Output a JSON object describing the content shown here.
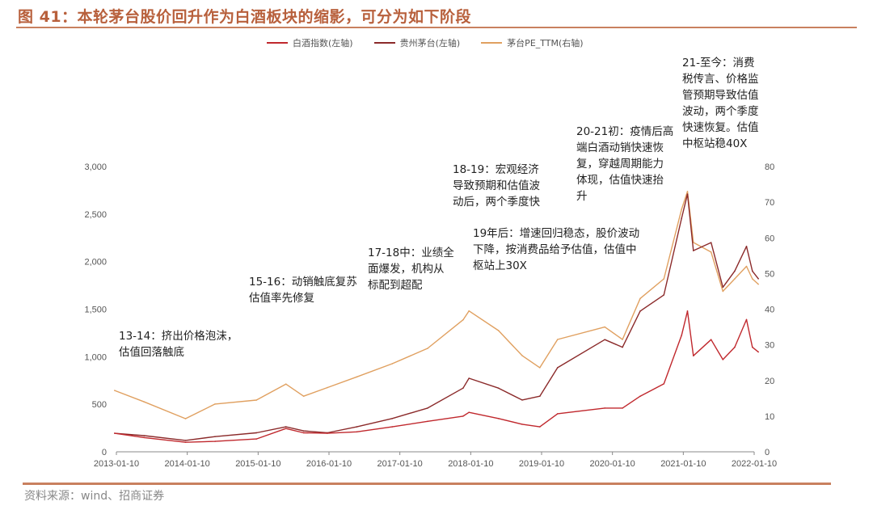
{
  "title": "图 41：本轮茅台股价回升作为白酒板块的缩影，可分为如下阶段",
  "source": "资料来源：wind、招商证券",
  "chart_data": {
    "type": "line",
    "title": "",
    "legend_position": "top",
    "grid": false,
    "x_ticks": [
      "2013-01-10",
      "2014-01-10",
      "2015-01-10",
      "2016-01-10",
      "2017-01-10",
      "2018-01-10",
      "2019-01-10",
      "2020-01-10",
      "2021-01-10",
      "2022-01-10"
    ],
    "y_left": {
      "range": [
        0,
        3000
      ],
      "ticks": [
        "0",
        "500",
        "1,000",
        "1,500",
        "2,000",
        "2,500",
        "3,000"
      ]
    },
    "y_right": {
      "range": [
        0,
        80
      ],
      "ticks": [
        "0",
        "10",
        "20",
        "30",
        "40",
        "50",
        "60",
        "70",
        "80"
      ]
    },
    "x": [
      "2013-01",
      "2013-06",
      "2014-01",
      "2014-06",
      "2015-01",
      "2015-06",
      "2015-09",
      "2016-01",
      "2016-06",
      "2016-12",
      "2017-06",
      "2017-12",
      "2018-01",
      "2018-06",
      "2018-10",
      "2019-01",
      "2019-04",
      "2019-12",
      "2020-03",
      "2020-06",
      "2020-10",
      "2021-01",
      "2021-02",
      "2021-03",
      "2021-06",
      "2021-08",
      "2021-10",
      "2021-12",
      "2022-01",
      "2022-02"
    ],
    "series": [
      {
        "name": "白酒指数(左轴)",
        "axis": "left",
        "color": "#c0282d",
        "values": [
          195,
          150,
          100,
          110,
          135,
          245,
          200,
          195,
          210,
          263,
          320,
          375,
          415,
          350,
          290,
          263,
          400,
          460,
          460,
          585,
          715,
          1225,
          1480,
          1010,
          1180,
          970,
          1100,
          1390,
          1100,
          1050
        ]
      },
      {
        "name": "贵州茅台(左轴)",
        "axis": "left",
        "color": "#8b2a2a",
        "values": [
          195,
          170,
          120,
          160,
          200,
          263,
          220,
          200,
          263,
          350,
          460,
          670,
          773,
          670,
          545,
          585,
          885,
          1180,
          1100,
          1480,
          1650,
          2455,
          2710,
          2115,
          2200,
          1730,
          1900,
          2160,
          1900,
          1820
        ]
      },
      {
        "name": "茅台PE_TTM(右轴)",
        "axis": "right",
        "color": "#e0a060",
        "values": [
          17.2,
          14,
          9.3,
          13.4,
          14.5,
          19,
          15.6,
          18,
          21,
          24.7,
          29,
          37,
          39.5,
          34,
          27,
          23.6,
          31.5,
          35,
          31.5,
          43,
          48.5,
          68,
          73,
          58.7,
          56,
          45,
          48.5,
          52,
          48.5,
          47
        ]
      }
    ]
  },
  "annotations": [
    {
      "lines": "13-14：挤出价格泡沫，\n估值回落触底"
    },
    {
      "lines": "15-16：动销触底复苏\n估值率先修复"
    },
    {
      "lines": "17-18中：业绩全\n面爆发，机构从\n标配到超配"
    },
    {
      "lines": "18-19：宏观经济\n导致预期和估值波\n动后，两个季度快"
    },
    {
      "lines": "19年后：增速回归稳态，股价波动\n下降，按消费品给予估值，估值中\n枢站上30X"
    },
    {
      "lines": "20-21初：疫情后高\n端白酒动销快速恢\n复，穿越周期能力\n体现，估值快速抬\n升"
    },
    {
      "lines": "21-至今：消费\n税传言、价格监\n管预期导致估值\n波动，两个季度\n快速恢复。估值\n中枢站稳40X"
    }
  ]
}
